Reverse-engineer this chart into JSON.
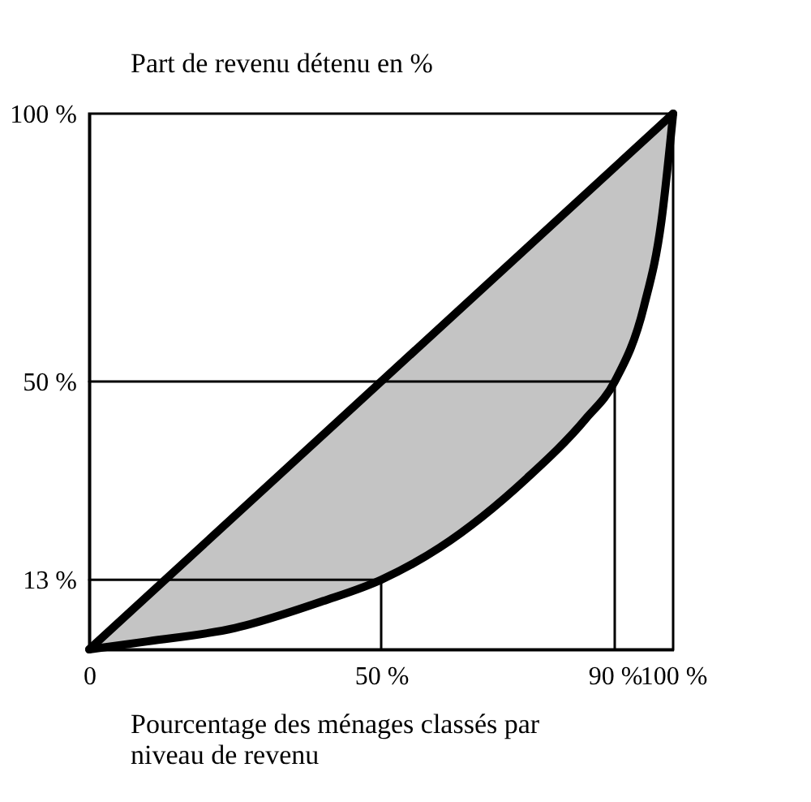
{
  "chart_data": {
    "type": "line",
    "ylabel": "Part de revenu détenu en %",
    "xlabel": "Pourcentage des ménages classés par\nniveau de revenu",
    "xlim": [
      0,
      100
    ],
    "ylim": [
      0,
      100
    ],
    "xticks": [
      {
        "value": 0,
        "label": "0"
      },
      {
        "value": 50,
        "label": "50 %"
      },
      {
        "value": 90,
        "label": "90 %"
      },
      {
        "value": 100,
        "label": "100 %"
      }
    ],
    "yticks": [
      {
        "value": 13,
        "label": "13 %"
      },
      {
        "value": 50,
        "label": "50 %"
      },
      {
        "value": 100,
        "label": "100 %"
      }
    ],
    "grid": false,
    "line_style": "solid",
    "series": [
      {
        "color": "#000000",
        "x": [
          0,
          100
        ],
        "values": [
          0,
          100
        ]
      },
      {
        "color": "#000000",
        "x": [
          0,
          10,
          25,
          40,
          50,
          60,
          75,
          85,
          90,
          95,
          98,
          100
        ],
        "values": [
          0,
          1.5,
          4,
          9,
          13,
          19,
          32,
          43,
          50,
          64,
          80,
          100
        ],
        "lower": [
          0,
          1.5,
          4,
          9,
          13,
          19,
          32,
          43,
          50,
          64,
          80,
          100
        ],
        "upper": [
          0,
          10,
          25,
          40,
          50,
          60,
          75,
          85,
          90,
          95,
          98,
          100
        ]
      },
      {
        "color": "#000000",
        "x": [
          0,
          50,
          50
        ],
        "values": [
          13,
          13,
          0
        ]
      },
      {
        "color": "#000000",
        "x": [
          0,
          90,
          90
        ],
        "values": [
          50,
          50,
          0
        ]
      }
    ]
  }
}
